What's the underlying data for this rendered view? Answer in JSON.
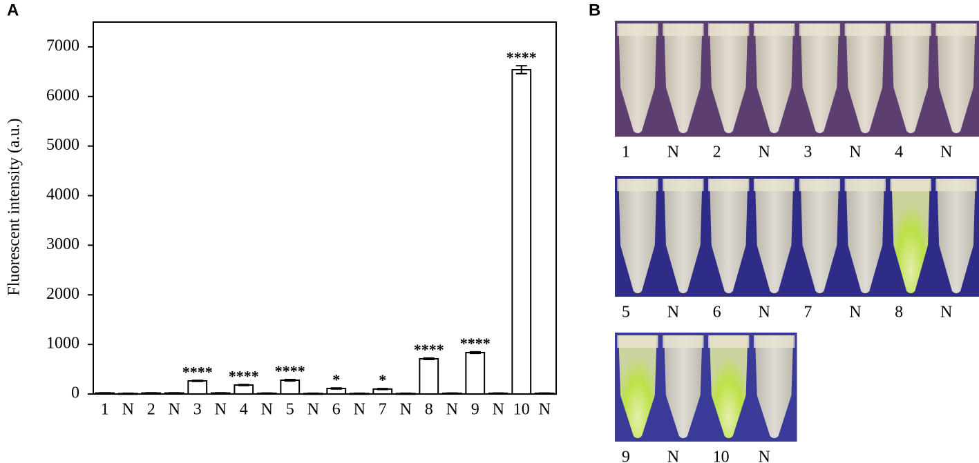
{
  "chart_data": {
    "type": "bar",
    "panel_label": "A",
    "y_label": "Fluorescent intensity (a.u.)",
    "categories": [
      "1",
      "N",
      "2",
      "N",
      "3",
      "N",
      "4",
      "N",
      "5",
      "N",
      "6",
      "N",
      "7",
      "N",
      "8",
      "N",
      "9",
      "N",
      "10",
      "N"
    ],
    "values": [
      20,
      10,
      20,
      20,
      264,
      20,
      181,
      15,
      278,
      10,
      111,
      10,
      100,
      10,
      710,
      15,
      835,
      15,
      6540,
      15
    ],
    "errors": [
      5,
      5,
      5,
      5,
      10,
      5,
      10,
      5,
      15,
      5,
      10,
      5,
      10,
      5,
      15,
      5,
      15,
      5,
      80,
      5
    ],
    "significance": [
      null,
      null,
      null,
      null,
      "****",
      null,
      "****",
      null,
      "****",
      null,
      "*",
      null,
      "*",
      null,
      "****",
      null,
      "****",
      null,
      "****",
      null
    ],
    "color": "#ffffff",
    "edge_color": "#000000",
    "ylim": [
      0,
      7500
    ],
    "yticks": [
      0,
      1000,
      2000,
      3000,
      4000,
      5000,
      6000,
      7000
    ]
  },
  "panel_b": {
    "label": "B",
    "rows": [
      [
        "1",
        "N",
        "2",
        "N",
        "3",
        "N",
        "4",
        "N"
      ],
      [
        "5",
        "N",
        "6",
        "N",
        "7",
        "N",
        "8",
        "N"
      ],
      [
        "9",
        "N",
        "10",
        "N"
      ]
    ]
  }
}
